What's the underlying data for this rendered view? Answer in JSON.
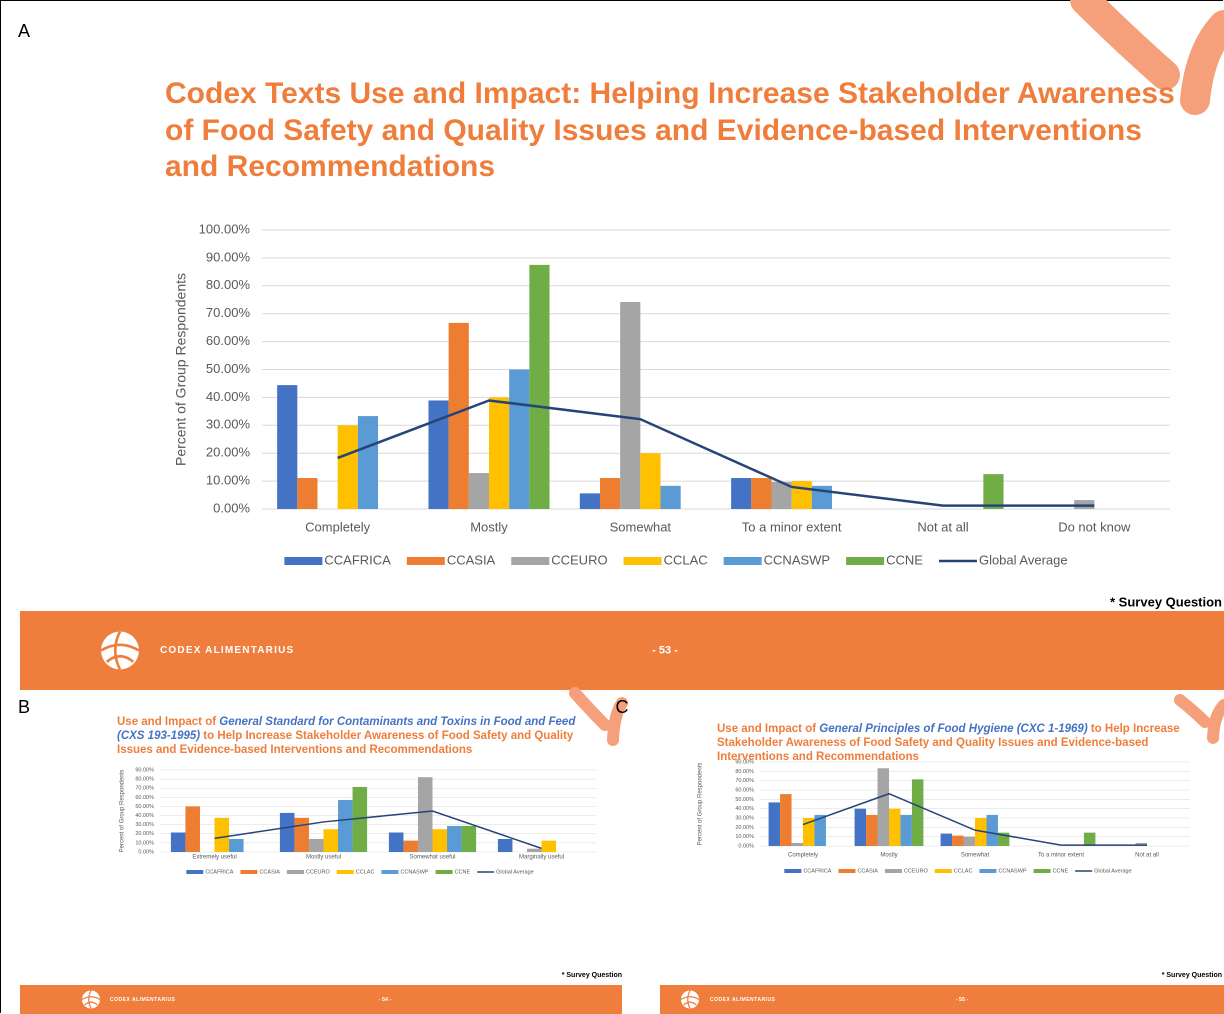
{
  "chart_data": [
    {
      "type": "bar",
      "panel_label": "A",
      "title": "Codex Texts Use and Impact: Helping Increase Stakeholder Awareness of Food Safety and Quality Issues and Evidence-based Interventions and Recommendations",
      "y_label": "Percent of Group Respondents",
      "categories": [
        "Completely",
        "Mostly",
        "Somewhat",
        "To a minor extent",
        "Not at all",
        "Do not know"
      ],
      "series": [
        {
          "name": "CCAFRICA",
          "color": "#4472c4",
          "values": [
            44.4,
            38.9,
            5.6,
            11.1,
            0,
            0
          ]
        },
        {
          "name": "CCASIA",
          "color": "#ed7d31",
          "values": [
            11.1,
            66.7,
            11.1,
            11.1,
            0,
            0
          ]
        },
        {
          "name": "CCEURO",
          "color": "#a5a5a5",
          "values": [
            0,
            12.9,
            74.2,
            9.7,
            0,
            3.2
          ]
        },
        {
          "name": "CCLAC",
          "color": "#ffc000",
          "values": [
            30,
            40,
            20,
            10,
            0,
            0
          ]
        },
        {
          "name": "CCNASWP",
          "color": "#5b9bd5",
          "values": [
            33.3,
            50,
            8.3,
            8.3,
            0,
            0
          ]
        },
        {
          "name": "CCNE",
          "color": "#70ad47",
          "values": [
            0,
            87.5,
            0,
            0,
            12.5,
            0
          ]
        },
        {
          "name": "Global Average",
          "type": "line",
          "color": "#264478",
          "values": [
            18.3,
            38.9,
            32.2,
            7.9,
            1.2,
            1.2
          ]
        }
      ],
      "ylim": [
        0,
        100
      ],
      "yticks": [
        {
          "value": 0,
          "label": "0.00%"
        },
        {
          "value": 10,
          "label": "10.00%"
        },
        {
          "value": 20,
          "label": "20.00%"
        },
        {
          "value": 30,
          "label": "30.00%"
        },
        {
          "value": 40,
          "label": "40.00%"
        },
        {
          "value": 50,
          "label": "50.00%"
        },
        {
          "value": 60,
          "label": "60.00%"
        },
        {
          "value": 70,
          "label": "70.00%"
        },
        {
          "value": 80,
          "label": "80.00%"
        },
        {
          "value": 90,
          "label": "90.00%"
        },
        {
          "value": 100,
          "label": "100.00%"
        }
      ],
      "grid": true,
      "note": "* Survey Question",
      "footer_text": "CODEX ALIMENTARIUS",
      "page_number": "- 53 -"
    },
    {
      "type": "bar",
      "panel_label": "B",
      "title": {
        "prefix": "Use and Impact of ",
        "emphasis": "General Standard for Contaminants and Toxins in Food and Feed (CXS 193-1995)",
        "suffix": " to Help Increase Stakeholder Awareness of Food Safety and Quality Issues and Evidence-based Interventions and Recommendations"
      },
      "y_label": "Percent of Group Respondents",
      "categories": [
        "Extremely useful",
        "Mostly useful",
        "Somewhat useful",
        "Marginally useful"
      ],
      "series": [
        {
          "name": "CCAFRICA",
          "color": "#4472c4",
          "values": [
            21.4,
            42.9,
            21.4,
            14.3
          ]
        },
        {
          "name": "CCASIA",
          "color": "#ed7d31",
          "values": [
            50,
            37.5,
            12.5,
            0
          ]
        },
        {
          "name": "CCEURO",
          "color": "#a5a5a5",
          "values": [
            0,
            14.3,
            82.1,
            3.6
          ]
        },
        {
          "name": "CCLAC",
          "color": "#ffc000",
          "values": [
            37.5,
            25,
            25,
            12.5
          ]
        },
        {
          "name": "CCNASWP",
          "color": "#5b9bd5",
          "values": [
            14.3,
            57.1,
            28.6,
            0
          ]
        },
        {
          "name": "CCNE",
          "color": "#70ad47",
          "values": [
            0,
            71.4,
            28.6,
            0
          ]
        },
        {
          "name": "Global Average",
          "type": "line",
          "color": "#264478",
          "values": [
            15,
            33,
            45,
            4
          ]
        }
      ],
      "ylim": [
        0,
        90
      ],
      "yticks": [
        {
          "value": 0,
          "label": "0.00%"
        },
        {
          "value": 10,
          "label": "10.00%"
        },
        {
          "value": 20,
          "label": "20.00%"
        },
        {
          "value": 30,
          "label": "30.00%"
        },
        {
          "value": 40,
          "label": "40.00%"
        },
        {
          "value": 50,
          "label": "50.00%"
        },
        {
          "value": 60,
          "label": "60.00%"
        },
        {
          "value": 70,
          "label": "70.00%"
        },
        {
          "value": 80,
          "label": "80.00%"
        },
        {
          "value": 90,
          "label": "90.00%"
        }
      ],
      "grid": true,
      "note": "* Survey Question",
      "footer_text": "CODEX ALIMENTARIUS",
      "page_number": "- 54 -"
    },
    {
      "type": "bar",
      "panel_label": "C",
      "title": {
        "prefix": "Use and Impact of ",
        "emphasis": "General Principles of Food Hygiene (CXC 1-1969)",
        "suffix": " to Help Increase Stakeholder Awareness of Food Safety and Quality Issues and Evidence-based Interventions and Recommendations"
      },
      "y_label": "Percent of Group Respondents",
      "categories": [
        "Completely",
        "Mostly",
        "Somewhat",
        "To a minor extent",
        "Not at all"
      ],
      "series": [
        {
          "name": "CCAFRICA",
          "color": "#4472c4",
          "values": [
            46.7,
            40,
            13.3,
            0,
            0
          ]
        },
        {
          "name": "CCASIA",
          "color": "#ed7d31",
          "values": [
            55.6,
            33.3,
            11.1,
            0,
            0
          ]
        },
        {
          "name": "CCEURO",
          "color": "#a5a5a5",
          "values": [
            3.3,
            83.3,
            10,
            0,
            3.3
          ]
        },
        {
          "name": "CCLAC",
          "color": "#ffc000",
          "values": [
            30,
            40,
            30,
            0,
            0
          ]
        },
        {
          "name": "CCNASWP",
          "color": "#5b9bd5",
          "values": [
            33.3,
            33.3,
            33.3,
            0,
            0
          ]
        },
        {
          "name": "CCNE",
          "color": "#70ad47",
          "values": [
            0,
            71.4,
            14.3,
            14.3,
            0
          ]
        },
        {
          "name": "Global Average",
          "type": "line",
          "color": "#264478",
          "values": [
            23,
            56,
            17,
            1,
            1
          ]
        }
      ],
      "ylim": [
        0,
        90
      ],
      "yticks": [
        {
          "value": 0,
          "label": "0.00%"
        },
        {
          "value": 10,
          "label": "10.00%"
        },
        {
          "value": 20,
          "label": "20.00%"
        },
        {
          "value": 30,
          "label": "30.00%"
        },
        {
          "value": 40,
          "label": "40.00%"
        },
        {
          "value": 50,
          "label": "50.00%"
        },
        {
          "value": 60,
          "label": "60.00%"
        },
        {
          "value": 70,
          "label": "70.00%"
        },
        {
          "value": 80,
          "label": "80.00%"
        },
        {
          "value": 90,
          "label": "90.00%"
        }
      ],
      "grid": true,
      "note": "* Survey Question",
      "footer_text": "CODEX ALIMENTARIUS",
      "page_number": "- 55 -"
    }
  ]
}
